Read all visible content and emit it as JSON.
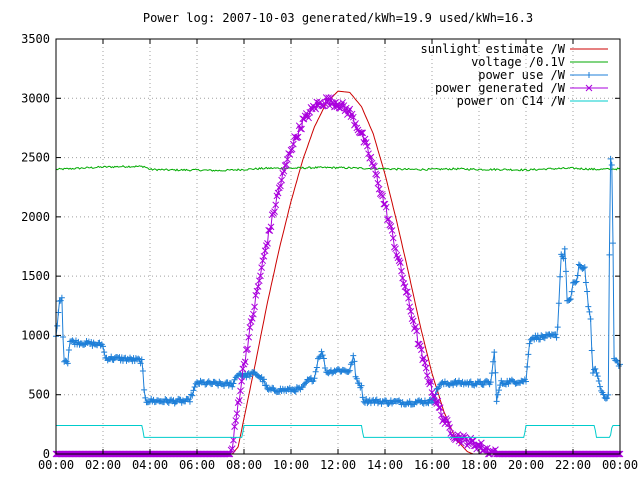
{
  "chart_data": {
    "type": "line",
    "title": "Power log: 2007-10-03 generated/kWh=19.9 used/kWh=16.3",
    "xlabel": "",
    "ylabel": "",
    "x_unit": "time of day (HH:MM)",
    "xlim": [
      "00:00",
      "24:00"
    ],
    "ylim": [
      0,
      3500
    ],
    "grid": true,
    "legend_placement": "top-right",
    "x_ticks": [
      "00:00",
      "02:00",
      "04:00",
      "06:00",
      "08:00",
      "10:00",
      "12:00",
      "14:00",
      "16:00",
      "18:00",
      "20:00",
      "22:00",
      "00:00"
    ],
    "y_ticks": [
      "0",
      "500",
      "1000",
      "1500",
      "2000",
      "2500",
      "3000",
      "3500"
    ],
    "series": [
      {
        "name": "sunlight estimate /W",
        "color": "#cc0000",
        "marker": "none",
        "points": [
          [
            "00:00",
            0
          ],
          [
            "07:30",
            0
          ],
          [
            "07:45",
            60
          ],
          [
            "08:00",
            300
          ],
          [
            "08:30",
            780
          ],
          [
            "09:00",
            1280
          ],
          [
            "09:30",
            1730
          ],
          [
            "10:00",
            2130
          ],
          [
            "10:30",
            2480
          ],
          [
            "11:00",
            2760
          ],
          [
            "11:30",
            2960
          ],
          [
            "12:00",
            3060
          ],
          [
            "12:30",
            3050
          ],
          [
            "13:00",
            2930
          ],
          [
            "13:30",
            2700
          ],
          [
            "14:00",
            2360
          ],
          [
            "14:30",
            1960
          ],
          [
            "15:00",
            1530
          ],
          [
            "15:30",
            1080
          ],
          [
            "16:00",
            680
          ],
          [
            "16:30",
            360
          ],
          [
            "17:00",
            130
          ],
          [
            "17:30",
            20
          ],
          [
            "17:45",
            0
          ],
          [
            "24:00",
            0
          ]
        ]
      },
      {
        "name": "voltage /0.1V",
        "color": "#00aa00",
        "marker": "none",
        "points": [
          [
            "00:00",
            2400
          ],
          [
            "01:00",
            2410
          ],
          [
            "02:00",
            2420
          ],
          [
            "03:00",
            2425
          ],
          [
            "03:45",
            2425
          ],
          [
            "04:00",
            2400
          ],
          [
            "05:00",
            2395
          ],
          [
            "06:00",
            2395
          ],
          [
            "07:00",
            2390
          ],
          [
            "08:00",
            2400
          ],
          [
            "09:00",
            2410
          ],
          [
            "10:00",
            2410
          ],
          [
            "11:00",
            2415
          ],
          [
            "12:00",
            2415
          ],
          [
            "13:00",
            2410
          ],
          [
            "14:00",
            2405
          ],
          [
            "15:00",
            2400
          ],
          [
            "16:00",
            2400
          ],
          [
            "17:00",
            2405
          ],
          [
            "18:00",
            2400
          ],
          [
            "19:00",
            2400
          ],
          [
            "20:00",
            2395
          ],
          [
            "21:00",
            2405
          ],
          [
            "22:00",
            2410
          ],
          [
            "23:00",
            2400
          ],
          [
            "24:00",
            2405
          ]
        ]
      },
      {
        "name": "power use /W",
        "color": "#1e7fd8",
        "marker": "plus",
        "points": [
          [
            "00:00",
            980
          ],
          [
            "00:10",
            1320
          ],
          [
            "00:15",
            1300
          ],
          [
            "00:20",
            800
          ],
          [
            "00:30",
            780
          ],
          [
            "00:35",
            950
          ],
          [
            "01:00",
            940
          ],
          [
            "01:30",
            930
          ],
          [
            "02:00",
            920
          ],
          [
            "02:05",
            810
          ],
          [
            "03:00",
            800
          ],
          [
            "03:30",
            790
          ],
          [
            "03:40",
            780
          ],
          [
            "03:45",
            530
          ],
          [
            "03:50",
            450
          ],
          [
            "05:00",
            445
          ],
          [
            "05:40",
            445
          ],
          [
            "06:00",
            600
          ],
          [
            "07:00",
            590
          ],
          [
            "07:30",
            585
          ],
          [
            "07:45",
            680
          ],
          [
            "08:00",
            660
          ],
          [
            "08:30",
            680
          ],
          [
            "08:50",
            620
          ],
          [
            "09:00",
            540
          ],
          [
            "10:00",
            540
          ],
          [
            "10:30",
            550
          ],
          [
            "10:40",
            610
          ],
          [
            "11:00",
            640
          ],
          [
            "11:10",
            820
          ],
          [
            "11:20",
            860
          ],
          [
            "11:30",
            690
          ],
          [
            "12:00",
            710
          ],
          [
            "12:30",
            700
          ],
          [
            "12:40",
            840
          ],
          [
            "12:45",
            650
          ],
          [
            "13:00",
            560
          ],
          [
            "13:05",
            450
          ],
          [
            "14:00",
            440
          ],
          [
            "15:00",
            435
          ],
          [
            "16:00",
            445
          ],
          [
            "16:20",
            590
          ],
          [
            "17:00",
            600
          ],
          [
            "18:00",
            595
          ],
          [
            "18:30",
            600
          ],
          [
            "18:40",
            880
          ],
          [
            "18:45",
            440
          ],
          [
            "18:55",
            600
          ],
          [
            "20:00",
            620
          ],
          [
            "20:10",
            980
          ],
          [
            "21:00",
            990
          ],
          [
            "21:20",
            1000
          ],
          [
            "21:30",
            1700
          ],
          [
            "21:35",
            1640
          ],
          [
            "21:40",
            1730
          ],
          [
            "21:45",
            1290
          ],
          [
            "21:55",
            1290
          ],
          [
            "22:00",
            1450
          ],
          [
            "22:10",
            1450
          ],
          [
            "22:15",
            1580
          ],
          [
            "22:30",
            1570
          ],
          [
            "22:40",
            1220
          ],
          [
            "22:45",
            1120
          ],
          [
            "22:50",
            700
          ],
          [
            "23:00",
            700
          ],
          [
            "23:10",
            550
          ],
          [
            "23:20",
            490
          ],
          [
            "23:30",
            480
          ],
          [
            "23:35",
            2500
          ],
          [
            "23:40",
            2420
          ],
          [
            "23:45",
            800
          ],
          [
            "24:00",
            750
          ]
        ]
      },
      {
        "name": "power generated /W",
        "color": "#aa00dd",
        "marker": "cross",
        "points": [
          [
            "00:00",
            0
          ],
          [
            "07:25",
            0
          ],
          [
            "07:30",
            50
          ],
          [
            "07:45",
            420
          ],
          [
            "08:00",
            760
          ],
          [
            "08:30",
            1310
          ],
          [
            "09:00",
            1810
          ],
          [
            "09:30",
            2240
          ],
          [
            "10:00",
            2580
          ],
          [
            "10:30",
            2800
          ],
          [
            "11:00",
            2930
          ],
          [
            "11:30",
            2980
          ],
          [
            "12:00",
            2960
          ],
          [
            "12:30",
            2880
          ],
          [
            "13:00",
            2700
          ],
          [
            "13:30",
            2430
          ],
          [
            "14:00",
            2090
          ],
          [
            "14:30",
            1700
          ],
          [
            "15:00",
            1290
          ],
          [
            "15:30",
            880
          ],
          [
            "16:00",
            540
          ],
          [
            "16:30",
            290
          ],
          [
            "17:00",
            150
          ],
          [
            "17:30",
            110
          ],
          [
            "18:00",
            70
          ],
          [
            "18:30",
            20
          ],
          [
            "18:45",
            0
          ],
          [
            "24:00",
            0
          ]
        ]
      },
      {
        "name": "power on C14 /W",
        "color": "#00cccc",
        "marker": "none",
        "points": [
          [
            "00:00",
            240
          ],
          [
            "03:40",
            240
          ],
          [
            "03:45",
            140
          ],
          [
            "07:55",
            140
          ],
          [
            "08:00",
            240
          ],
          [
            "13:00",
            240
          ],
          [
            "13:05",
            140
          ],
          [
            "19:55",
            140
          ],
          [
            "20:00",
            240
          ],
          [
            "22:55",
            240
          ],
          [
            "23:00",
            140
          ],
          [
            "23:35",
            140
          ],
          [
            "23:40",
            240
          ],
          [
            "24:00",
            240
          ]
        ]
      }
    ]
  }
}
